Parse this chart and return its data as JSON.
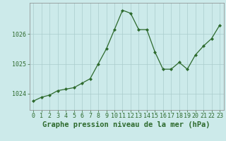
{
  "x": [
    0,
    1,
    2,
    3,
    4,
    5,
    6,
    7,
    8,
    9,
    10,
    11,
    12,
    13,
    14,
    15,
    16,
    17,
    18,
    19,
    20,
    21,
    22,
    23
  ],
  "y": [
    1023.75,
    1023.88,
    1023.95,
    1024.1,
    1024.15,
    1024.2,
    1024.35,
    1024.5,
    1025.0,
    1025.5,
    1026.15,
    1026.8,
    1026.7,
    1026.15,
    1026.15,
    1025.4,
    1024.82,
    1024.82,
    1025.05,
    1024.82,
    1025.3,
    1025.6,
    1025.85,
    1026.3
  ],
  "line_color": "#2d6a2d",
  "marker_color": "#2d6a2d",
  "bg_color": "#cceaea",
  "grid_color": "#aacccc",
  "title": "Graphe pression niveau de la mer (hPa)",
  "xlabel_ticks": [
    0,
    1,
    2,
    3,
    4,
    5,
    6,
    7,
    8,
    9,
    10,
    11,
    12,
    13,
    14,
    15,
    16,
    17,
    18,
    19,
    20,
    21,
    22,
    23
  ],
  "yticks": [
    1024,
    1025,
    1026
  ],
  "ylim": [
    1023.45,
    1027.05
  ],
  "xlim": [
    -0.5,
    23.5
  ],
  "title_fontsize": 7.5,
  "tick_fontsize": 6.0
}
